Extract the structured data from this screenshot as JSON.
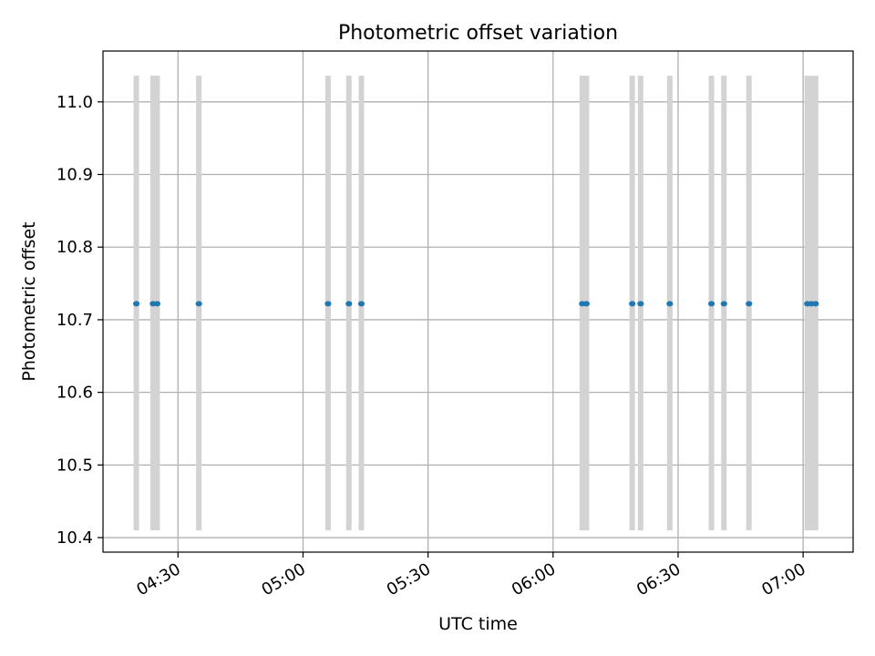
{
  "chart_data": {
    "type": "scatter",
    "title": "Photometric offset variation",
    "xlabel": "UTC time",
    "ylabel": "Photometric offset",
    "xlim": [
      "04:12",
      "07:12"
    ],
    "ylim": [
      10.38,
      11.07
    ],
    "x_ticks": [
      "04:30",
      "05:00",
      "05:30",
      "06:00",
      "06:30",
      "07:00"
    ],
    "y_ticks": [
      "10.4",
      "10.5",
      "10.6",
      "10.7",
      "10.8",
      "10.9",
      "11.0"
    ],
    "grid": true,
    "span_range": [
      10.41,
      11.036
    ],
    "times": [
      "04:20",
      "04:24",
      "04:25",
      "04:35",
      "05:06",
      "05:11",
      "05:14",
      "06:07",
      "06:08",
      "06:19",
      "06:21",
      "06:28",
      "06:38",
      "06:41",
      "06:47",
      "07:01",
      "07:02",
      "07:03"
    ],
    "spans": [
      [
        "04:20",
        "04:20"
      ],
      [
        "04:24",
        "04:25"
      ],
      [
        "04:35",
        "04:35"
      ],
      [
        "05:06",
        "05:06"
      ],
      [
        "05:11",
        "05:11"
      ],
      [
        "05:14",
        "05:14"
      ],
      [
        "06:07",
        "06:08"
      ],
      [
        "06:19",
        "06:19"
      ],
      [
        "06:21",
        "06:21"
      ],
      [
        "06:28",
        "06:28"
      ],
      [
        "06:38",
        "06:38"
      ],
      [
        "06:41",
        "06:41"
      ],
      [
        "06:47",
        "06:47"
      ],
      [
        "07:01",
        "07:03"
      ]
    ],
    "y": [
      10.722,
      10.722,
      10.722,
      10.722,
      10.722,
      10.722,
      10.722,
      10.722,
      10.722,
      10.722,
      10.722,
      10.722,
      10.722,
      10.722,
      10.722,
      10.722,
      10.722,
      10.722
    ],
    "colors": {
      "points": "#1f77b4",
      "spans": "#d3d3d3",
      "grid": "#b0b0b0"
    }
  }
}
